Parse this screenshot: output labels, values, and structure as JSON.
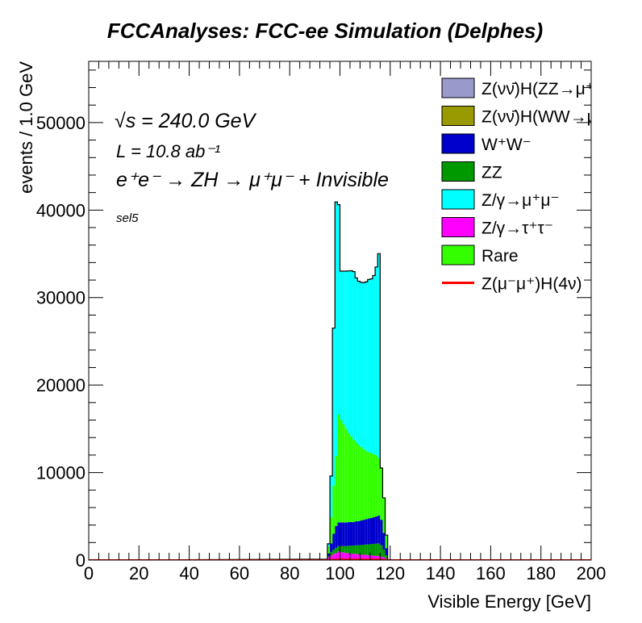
{
  "title": "FCCAnalyses: FCC-ee Simulation (Delphes)",
  "annotations": {
    "energy": "√s = 240.0 GeV",
    "lumi": "L = 10.8 ab⁻¹",
    "process": "e⁺e⁻ → ZH → μ⁺μ⁻ + Invisible",
    "selection": "sel5"
  },
  "chart_data": {
    "type": "area",
    "stacked": true,
    "xlabel": "Visible Energy [GeV]",
    "ylabel": "events / 1.0 GeV",
    "xlim": [
      0,
      200
    ],
    "ylim": [
      0,
      57000
    ],
    "xticks": [
      0,
      20,
      40,
      60,
      80,
      100,
      120,
      140,
      160,
      180,
      200
    ],
    "yticks": [
      0,
      10000,
      20000,
      30000,
      40000,
      50000
    ],
    "x": [
      94,
      95,
      96,
      97,
      98,
      99,
      100,
      101,
      102,
      103,
      104,
      105,
      106,
      107,
      108,
      109,
      110,
      111,
      112,
      113,
      114,
      115,
      116,
      117,
      118,
      119
    ],
    "series": [
      {
        "name": "Z/γ→τ⁺τ⁻",
        "color": "#ff00ff",
        "values": [
          100,
          300,
          500,
          700,
          800,
          1000,
          900,
          850,
          800,
          780,
          750,
          700,
          680,
          650,
          620,
          600,
          580,
          550,
          520,
          500,
          480,
          450,
          400,
          300,
          150,
          0
        ]
      },
      {
        "name": "ZZ",
        "color": "#009900",
        "values": [
          0,
          150,
          400,
          500,
          600,
          600,
          700,
          750,
          800,
          850,
          900,
          950,
          1000,
          1050,
          1100,
          1150,
          1200,
          1250,
          1300,
          1350,
          1400,
          1450,
          1300,
          900,
          400,
          0
        ]
      },
      {
        "name": "W⁺W⁻",
        "color": "#0000cc",
        "values": [
          0,
          300,
          1000,
          1800,
          2500,
          2700,
          2700,
          2700,
          2700,
          2700,
          2700,
          2700,
          2750,
          2750,
          2800,
          2850,
          2900,
          2950,
          3000,
          3050,
          3100,
          3200,
          2900,
          1900,
          800,
          0
        ]
      },
      {
        "name": "Rare",
        "color": "#33ff00",
        "values": [
          0,
          800,
          3000,
          5500,
          8000,
          12300,
          11700,
          11200,
          10700,
          10200,
          9800,
          9400,
          9000,
          8700,
          8400,
          8100,
          7800,
          7600,
          7400,
          7200,
          7000,
          6600,
          5900,
          4000,
          1500,
          0
        ]
      },
      {
        "name": "Z/γ→μ⁺μ⁻",
        "color": "#00ffff",
        "values": [
          0,
          300,
          4700,
          18000,
          29000,
          24000,
          17000,
          17500,
          18000,
          18500,
          18900,
          19200,
          18800,
          18700,
          18800,
          19000,
          19300,
          19700,
          19900,
          20400,
          21500,
          23300,
          0,
          0,
          0,
          0
        ]
      },
      {
        "name": "Z(νν̄)H(WW→μ⁺νμ⁻ν̄)",
        "color": "#999900",
        "values": [
          0,
          2,
          5,
          8,
          10,
          12,
          12,
          12,
          12,
          12,
          12,
          12,
          12,
          12,
          12,
          12,
          12,
          12,
          12,
          12,
          12,
          12,
          10,
          6,
          3,
          0
        ]
      },
      {
        "name": "Z(νν̄)H(ZZ→μ⁺μ⁻νν̄)",
        "color": "#9999cc",
        "values": [
          0,
          1,
          3,
          4,
          5,
          6,
          6,
          6,
          6,
          6,
          6,
          6,
          6,
          6,
          6,
          6,
          6,
          6,
          6,
          6,
          6,
          6,
          5,
          3,
          1,
          0
        ]
      },
      {
        "name": "Z(μ⁻μ⁺)H(4ν)",
        "color": "#ff0000",
        "style": "line",
        "values": [
          0,
          5,
          20,
          40,
          60,
          70,
          70,
          70,
          70,
          70,
          70,
          70,
          70,
          70,
          70,
          70,
          70,
          70,
          70,
          70,
          70,
          70,
          50,
          30,
          10,
          0
        ]
      }
    ],
    "legend": {
      "position": "top-right",
      "entries": [
        {
          "label": "Z(νν̄)H(ZZ→μ⁺μ⁻νν̄)",
          "color": "#9999cc",
          "kind": "box"
        },
        {
          "label": "Z(νν̄)H(WW→μ⁺νμ⁻ν̄)",
          "color": "#999900",
          "kind": "box"
        },
        {
          "label": "W⁺W⁻",
          "color": "#0000cc",
          "kind": "box"
        },
        {
          "label": "ZZ",
          "color": "#009900",
          "kind": "box"
        },
        {
          "label": "Z/γ→μ⁺μ⁻",
          "color": "#00ffff",
          "kind": "box"
        },
        {
          "label": "Z/γ→τ⁺τ⁻",
          "color": "#ff00ff",
          "kind": "box"
        },
        {
          "label": "Rare",
          "color": "#33ff00",
          "kind": "box"
        },
        {
          "label": "Z(μ⁻μ⁺)H(4ν)",
          "color": "#ff0000",
          "kind": "line"
        }
      ]
    },
    "grid": false
  }
}
